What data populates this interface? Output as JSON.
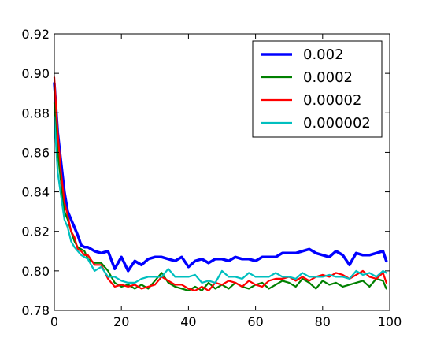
{
  "chart_data": {
    "type": "line",
    "title": "",
    "xlabel": "",
    "ylabel": "",
    "xlim": [
      0,
      100
    ],
    "ylim": [
      0.78,
      0.92
    ],
    "x_ticks": [
      0,
      20,
      40,
      60,
      80,
      100
    ],
    "x_tick_labels": [
      "0",
      "20",
      "40",
      "60",
      "80",
      "100"
    ],
    "y_ticks": [
      0.78,
      0.8,
      0.82,
      0.84,
      0.86,
      0.88,
      0.9,
      0.92
    ],
    "y_tick_labels": [
      "0.78",
      "0.80",
      "0.82",
      "0.84",
      "0.86",
      "0.88",
      "0.90",
      "0.92"
    ],
    "grid": false,
    "legend_position": "top-right",
    "series": [
      {
        "name": "0.002",
        "color": "#0000ff",
        "width": 3.5,
        "x": [
          0,
          1,
          2,
          3,
          4,
          5,
          6,
          7,
          8,
          9,
          10,
          12,
          14,
          16,
          18,
          20,
          22,
          24,
          26,
          28,
          30,
          32,
          34,
          36,
          38,
          40,
          42,
          44,
          46,
          48,
          50,
          52,
          54,
          56,
          58,
          60,
          62,
          64,
          66,
          68,
          70,
          72,
          74,
          76,
          78,
          80,
          82,
          84,
          86,
          88,
          90,
          92,
          94,
          96,
          98,
          99
        ],
        "y": [
          0.895,
          0.87,
          0.855,
          0.84,
          0.83,
          0.826,
          0.822,
          0.818,
          0.813,
          0.812,
          0.812,
          0.81,
          0.809,
          0.81,
          0.801,
          0.807,
          0.8,
          0.805,
          0.803,
          0.806,
          0.807,
          0.807,
          0.806,
          0.805,
          0.807,
          0.802,
          0.805,
          0.806,
          0.804,
          0.806,
          0.806,
          0.805,
          0.807,
          0.806,
          0.806,
          0.805,
          0.807,
          0.807,
          0.807,
          0.809,
          0.809,
          0.809,
          0.81,
          0.811,
          0.809,
          0.808,
          0.807,
          0.81,
          0.808,
          0.803,
          0.809,
          0.808,
          0.808,
          0.809,
          0.81,
          0.805
        ]
      },
      {
        "name": "0.0002",
        "color": "#008000",
        "width": 2.2,
        "x": [
          0,
          1,
          2,
          3,
          4,
          5,
          6,
          7,
          8,
          9,
          10,
          12,
          14,
          16,
          18,
          20,
          22,
          24,
          26,
          28,
          30,
          32,
          34,
          36,
          38,
          40,
          42,
          44,
          46,
          48,
          50,
          52,
          54,
          56,
          58,
          60,
          62,
          64,
          66,
          68,
          70,
          72,
          74,
          76,
          78,
          80,
          82,
          84,
          86,
          88,
          90,
          92,
          94,
          96,
          98,
          99
        ],
        "y": [
          0.885,
          0.86,
          0.845,
          0.83,
          0.826,
          0.82,
          0.815,
          0.812,
          0.811,
          0.81,
          0.806,
          0.804,
          0.804,
          0.8,
          0.794,
          0.792,
          0.793,
          0.791,
          0.793,
          0.791,
          0.795,
          0.799,
          0.794,
          0.792,
          0.791,
          0.79,
          0.792,
          0.79,
          0.794,
          0.791,
          0.793,
          0.791,
          0.794,
          0.792,
          0.791,
          0.793,
          0.794,
          0.791,
          0.793,
          0.795,
          0.794,
          0.792,
          0.796,
          0.794,
          0.791,
          0.795,
          0.793,
          0.794,
          0.792,
          0.793,
          0.794,
          0.795,
          0.792,
          0.796,
          0.795,
          0.791
        ]
      },
      {
        "name": "0.00002",
        "color": "#ff0000",
        "width": 2.2,
        "x": [
          0,
          1,
          2,
          3,
          4,
          5,
          6,
          7,
          8,
          9,
          10,
          12,
          14,
          16,
          18,
          20,
          22,
          24,
          26,
          28,
          30,
          32,
          34,
          36,
          38,
          40,
          42,
          44,
          46,
          48,
          50,
          52,
          54,
          56,
          58,
          60,
          62,
          64,
          66,
          68,
          70,
          72,
          74,
          76,
          78,
          80,
          82,
          84,
          86,
          88,
          90,
          92,
          94,
          96,
          98,
          99
        ],
        "y": [
          0.898,
          0.87,
          0.85,
          0.835,
          0.828,
          0.82,
          0.817,
          0.811,
          0.81,
          0.808,
          0.808,
          0.803,
          0.803,
          0.796,
          0.792,
          0.793,
          0.792,
          0.793,
          0.791,
          0.792,
          0.793,
          0.797,
          0.795,
          0.793,
          0.793,
          0.791,
          0.79,
          0.792,
          0.79,
          0.794,
          0.793,
          0.795,
          0.794,
          0.792,
          0.795,
          0.793,
          0.792,
          0.795,
          0.796,
          0.796,
          0.797,
          0.795,
          0.797,
          0.795,
          0.797,
          0.798,
          0.797,
          0.799,
          0.798,
          0.796,
          0.798,
          0.8,
          0.797,
          0.796,
          0.799,
          0.794
        ]
      },
      {
        "name": "0.000002",
        "color": "#00bfbf",
        "width": 2.2,
        "x": [
          0,
          1,
          2,
          3,
          4,
          5,
          6,
          7,
          8,
          9,
          10,
          12,
          14,
          16,
          18,
          20,
          22,
          24,
          26,
          28,
          30,
          32,
          34,
          36,
          38,
          40,
          42,
          44,
          46,
          48,
          50,
          52,
          54,
          56,
          58,
          60,
          62,
          64,
          66,
          68,
          70,
          72,
          74,
          76,
          78,
          80,
          82,
          84,
          86,
          88,
          90,
          92,
          94,
          96,
          98,
          99
        ],
        "y": [
          0.878,
          0.85,
          0.838,
          0.826,
          0.822,
          0.815,
          0.812,
          0.81,
          0.808,
          0.807,
          0.806,
          0.8,
          0.802,
          0.797,
          0.797,
          0.795,
          0.794,
          0.794,
          0.796,
          0.797,
          0.797,
          0.797,
          0.801,
          0.797,
          0.797,
          0.797,
          0.798,
          0.794,
          0.795,
          0.794,
          0.8,
          0.797,
          0.797,
          0.796,
          0.799,
          0.797,
          0.797,
          0.797,
          0.799,
          0.797,
          0.797,
          0.796,
          0.799,
          0.797,
          0.797,
          0.797,
          0.798,
          0.797,
          0.797,
          0.796,
          0.8,
          0.798,
          0.799,
          0.797,
          0.8,
          0.799
        ]
      }
    ]
  }
}
